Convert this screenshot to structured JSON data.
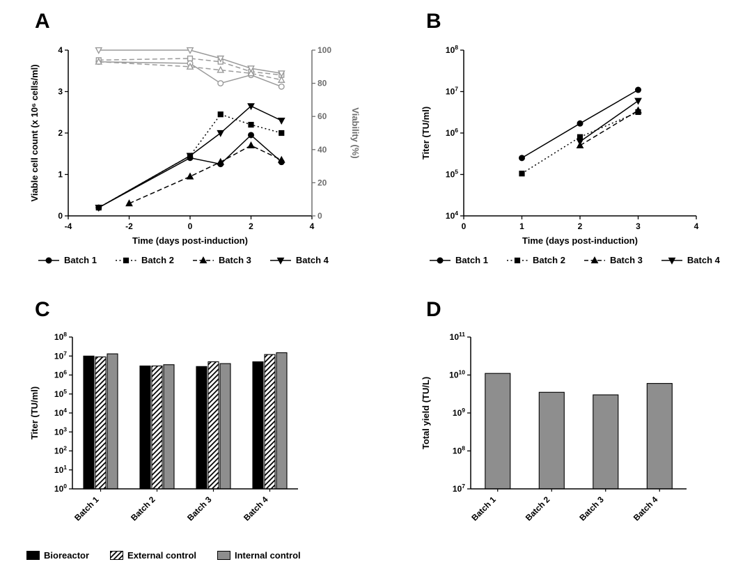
{
  "panels": {
    "a": {
      "label": "A"
    },
    "b": {
      "label": "B"
    },
    "c": {
      "label": "C"
    },
    "d": {
      "label": "D"
    }
  },
  "colors": {
    "black": "#000000",
    "line_gray": "#9a9a9a",
    "bar_gray": "#8e8e8e"
  },
  "legend_batches": [
    {
      "label": "Batch 1",
      "marker": "circle",
      "line": "solid"
    },
    {
      "label": "Batch 2",
      "marker": "square",
      "line": "dotted"
    },
    {
      "label": "Batch 3",
      "marker": "triangle-up",
      "line": "dashed"
    },
    {
      "label": "Batch 4",
      "marker": "triangle-down",
      "line": "solid"
    }
  ],
  "legend_c": [
    {
      "label": "Bioreactor",
      "fill": "black"
    },
    {
      "label": "External control",
      "fill": "hatch"
    },
    {
      "label": "Internal control",
      "fill": "bar_gray"
    }
  ],
  "chart_data": [
    {
      "id": "A",
      "type": "line",
      "xlabel": "Time (days post-induction)",
      "ylabel": "Viable cell count (x 10⁶ cells/ml)",
      "y2label": "Viability (%)",
      "xlim": [
        -4,
        4
      ],
      "xticks": [
        -4,
        -2,
        0,
        2,
        4
      ],
      "ylim": [
        0,
        4
      ],
      "yticks": [
        0,
        1,
        2,
        3,
        4
      ],
      "y2lim": [
        0,
        100
      ],
      "y2ticks": [
        0,
        20,
        40,
        60,
        80,
        100
      ],
      "series": [
        {
          "name": "Batch 1 viable cell count",
          "axis": "left",
          "color": "black",
          "marker": "circle",
          "line": "solid",
          "open": false,
          "points": [
            [
              -3,
              0.2
            ],
            [
              0,
              1.4
            ],
            [
              1,
              1.25
            ],
            [
              2,
              1.95
            ],
            [
              3,
              1.3
            ]
          ]
        },
        {
          "name": "Batch 2 viable cell count",
          "axis": "left",
          "color": "black",
          "marker": "square",
          "line": "dotted",
          "open": false,
          "points": [
            [
              -3,
              0.2
            ],
            [
              0,
              1.45
            ],
            [
              1,
              2.45
            ],
            [
              2,
              2.2
            ],
            [
              3,
              2.0
            ]
          ]
        },
        {
          "name": "Batch 3 viable cell count",
          "axis": "left",
          "color": "black",
          "marker": "triangle-up",
          "line": "dashed",
          "open": false,
          "points": [
            [
              -2,
              0.3
            ],
            [
              0,
              0.95
            ],
            [
              1,
              1.3
            ],
            [
              2,
              1.7
            ],
            [
              3,
              1.35
            ]
          ]
        },
        {
          "name": "Batch 4 viable cell count",
          "axis": "left",
          "color": "black",
          "marker": "triangle-down",
          "line": "solid",
          "open": false,
          "points": [
            [
              -3,
              0.2
            ],
            [
              0,
              1.45
            ],
            [
              1,
              2.0
            ],
            [
              2,
              2.65
            ],
            [
              3,
              2.3
            ]
          ]
        },
        {
          "name": "Batch 1 viability",
          "axis": "right",
          "color": "line_gray",
          "marker": "circle",
          "line": "solid",
          "open": true,
          "points": [
            [
              -3,
              93
            ],
            [
              0,
              92
            ],
            [
              1,
              80
            ],
            [
              2,
              85
            ],
            [
              3,
              78
            ]
          ]
        },
        {
          "name": "Batch 2 viability",
          "axis": "right",
          "color": "line_gray",
          "marker": "square",
          "line": "dashed",
          "open": true,
          "points": [
            [
              -3,
              94
            ],
            [
              0,
              95
            ],
            [
              1,
              93
            ],
            [
              2,
              87
            ],
            [
              3,
              85
            ]
          ]
        },
        {
          "name": "Batch 3 viability",
          "axis": "right",
          "color": "line_gray",
          "marker": "triangle-up",
          "line": "dashed",
          "open": true,
          "points": [
            [
              -3,
              93
            ],
            [
              0,
              90
            ],
            [
              1,
              88
            ],
            [
              2,
              86
            ],
            [
              3,
              82
            ]
          ]
        },
        {
          "name": "Batch 4 viability",
          "axis": "right",
          "color": "line_gray",
          "marker": "triangle-down",
          "line": "solid",
          "open": true,
          "points": [
            [
              -3,
              100
            ],
            [
              0,
              100
            ],
            [
              1,
              95
            ],
            [
              2,
              89
            ],
            [
              3,
              86
            ]
          ]
        }
      ]
    },
    {
      "id": "B",
      "type": "line",
      "xlabel": "Time (days post-induction)",
      "ylabel": "Titer (TU/ml)",
      "xlim": [
        0,
        4
      ],
      "xticks": [
        0,
        1,
        2,
        3,
        4
      ],
      "ylog": [
        4,
        8
      ],
      "series": [
        {
          "name": "Batch 1",
          "color": "black",
          "marker": "circle",
          "line": "solid",
          "open": false,
          "points": [
            [
              1,
              250000
            ],
            [
              2,
              1700000
            ],
            [
              3,
              11000000
            ]
          ]
        },
        {
          "name": "Batch 2",
          "color": "black",
          "marker": "square",
          "line": "dotted",
          "open": false,
          "points": [
            [
              1,
              105000
            ],
            [
              2,
              800000
            ],
            [
              3,
              3200000
            ]
          ]
        },
        {
          "name": "Batch 3",
          "color": "black",
          "marker": "triangle-up",
          "line": "dashed",
          "open": false,
          "points": [
            [
              2,
              500000
            ],
            [
              3,
              3500000
            ]
          ]
        },
        {
          "name": "Batch 4",
          "color": "black",
          "marker": "triangle-down",
          "line": "solid",
          "open": false,
          "points": [
            [
              2,
              620000
            ],
            [
              3,
              6000000
            ]
          ]
        }
      ]
    },
    {
      "id": "C",
      "type": "bar",
      "ylabel": "Titer (TU/ml)",
      "ylog": [
        0,
        8
      ],
      "categories": [
        "Batch 1",
        "Batch 2",
        "Batch 3",
        "Batch 4"
      ],
      "series": [
        {
          "name": "Bioreactor",
          "fill": "black",
          "values": [
            10000000.0,
            3000000.0,
            2800000.0,
            5000000.0
          ]
        },
        {
          "name": "External control",
          "fill": "hatch",
          "values": [
            9000000.0,
            3000000.0,
            5000000.0,
            12000000.0
          ]
        },
        {
          "name": "Internal control",
          "fill": "bar_gray",
          "values": [
            13000000.0,
            3500000.0,
            4000000.0,
            15000000.0
          ]
        }
      ]
    },
    {
      "id": "D",
      "type": "bar",
      "ylabel": "Total yield (TU/L)",
      "ylog": [
        7,
        11
      ],
      "categories": [
        "Batch 1",
        "Batch 2",
        "Batch 3",
        "Batch 4"
      ],
      "series": [
        {
          "name": "Total yield",
          "fill": "bar_gray",
          "values": [
            11000000000.0,
            3500000000.0,
            3000000000.0,
            6000000000.0
          ]
        }
      ]
    }
  ]
}
